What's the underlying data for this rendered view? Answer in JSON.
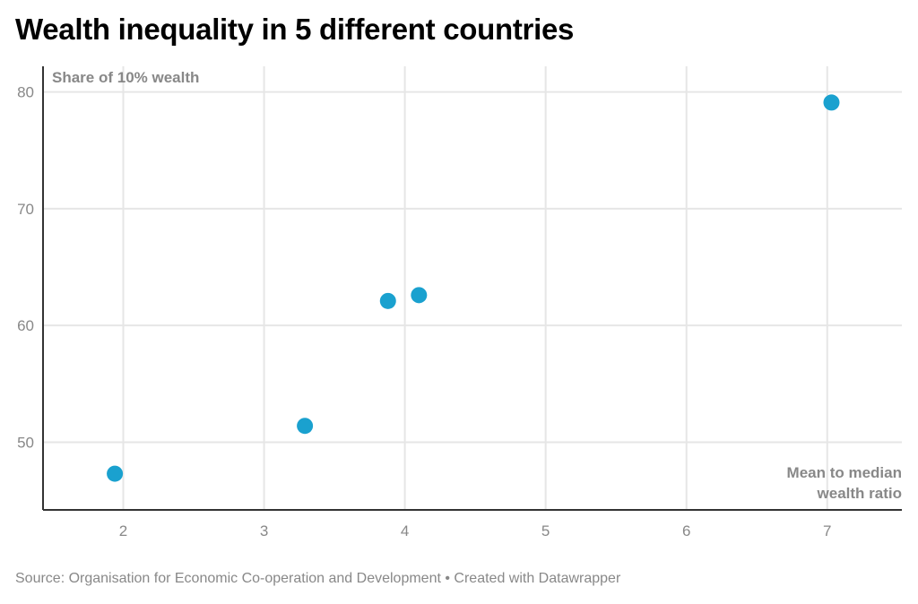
{
  "chart_data": {
    "type": "scatter",
    "title": "Wealth inequality in 5 different countries",
    "xlabel": "Mean to median wealth ratio",
    "xlabel_lines": [
      "Mean to median",
      "wealth ratio"
    ],
    "ylabel": "Share of 10% wealth",
    "xlim": [
      1.43,
      7.53
    ],
    "ylim": [
      44.2,
      82.2
    ],
    "x_ticks": [
      2,
      3,
      4,
      5,
      6,
      7
    ],
    "y_ticks": [
      50,
      60,
      70,
      80
    ],
    "grid": true,
    "point_color": "#1aa1cf",
    "points": [
      {
        "x": 1.94,
        "y": 47.3
      },
      {
        "x": 3.29,
        "y": 51.4
      },
      {
        "x": 3.88,
        "y": 62.1
      },
      {
        "x": 4.1,
        "y": 62.6
      },
      {
        "x": 7.03,
        "y": 79.1
      }
    ],
    "source": "Source: Organisation for Economic Co-operation and Development • Created with Datawrapper"
  }
}
